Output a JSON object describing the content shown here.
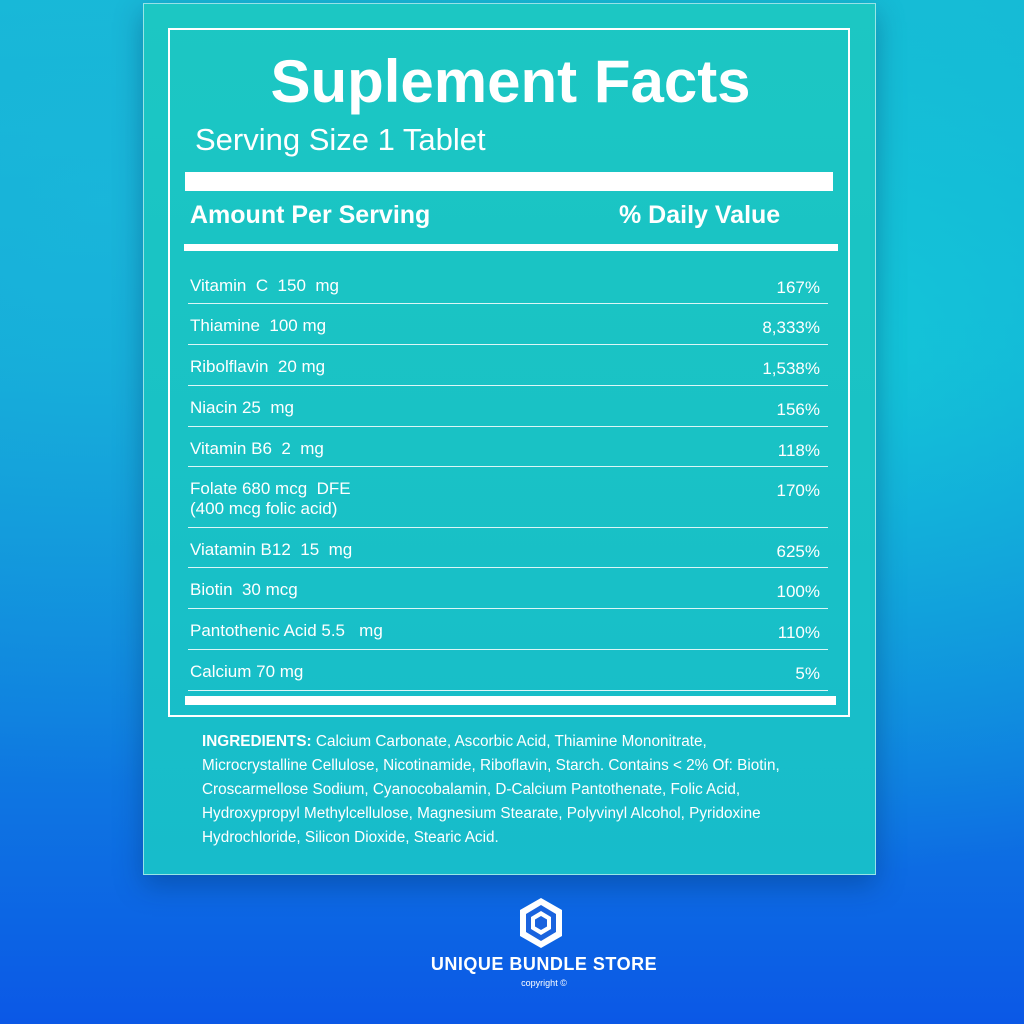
{
  "label": {
    "title": "Suplement Facts",
    "serving_size": "Serving Size 1 Tablet",
    "header_amount": "Amount Per Serving",
    "header_dv": "% Daily Value",
    "nutrients": [
      {
        "name": "Vitamin  C  150  mg",
        "dv": "167%"
      },
      {
        "name": "Thiamine  100 mg",
        "dv": "8,333%"
      },
      {
        "name": "Ribolflavin  20 mg",
        "dv": "1,538%"
      },
      {
        "name": "Niacin 25  mg",
        "dv": "156%"
      },
      {
        "name": "Vitamin B6  2  mg",
        "dv": "118%"
      },
      {
        "name": "Folate 680 mcg  DFE\n(400 mcg folic acid)",
        "dv": "170%"
      },
      {
        "name": "Viatamin B12  15  mg",
        "dv": "625%"
      },
      {
        "name": "Biotin  30 mcg",
        "dv": "100%"
      },
      {
        "name": "Pantothenic Acid 5.5   mg",
        "dv": "110%"
      },
      {
        "name": "Calcium 70 mg",
        "dv": "5%"
      }
    ],
    "ingredients_label": "INGREDIENTS:",
    "ingredients_text": "Calcium Carbonate, Ascorbic Acid, Thiamine Mononitrate, Microcrystalline Cellulose, Nicotinamide, Riboflavin, Starch. Contains < 2% Of: Biotin, Croscarmellose Sodium, Cyanocobalamin, D-Calcium Pantothenate, Folic Acid, Hydroxypropyl Methylcellulose, Magnesium Stearate, Polyvinyl Alcohol, Pyridoxine Hydrochloride, Silicon Dioxide, Stearic Acid."
  },
  "brand": {
    "name": "UNIQUE BUNDLE STORE",
    "copyright": "copyright ©",
    "logo_icon": "hexagon-logo-icon"
  },
  "colors": {
    "panel": "#1cc7c3",
    "text": "#ffffff",
    "bg_top": "#16b5d6",
    "bg_bottom": "#0b58e6"
  }
}
